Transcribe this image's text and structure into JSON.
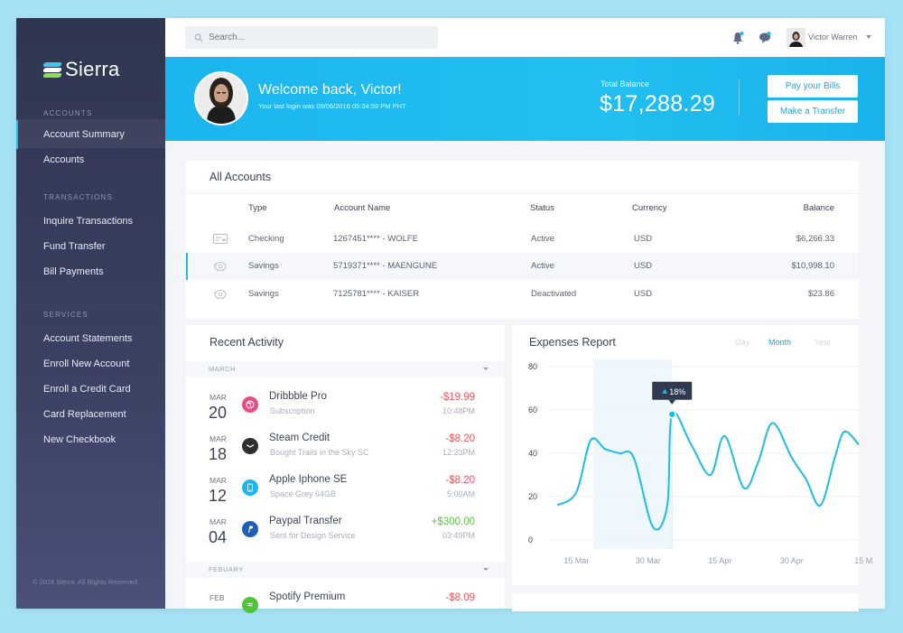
{
  "sidebar": {
    "brand": "Sierra",
    "sections": [
      {
        "title": "ACCOUNTS",
        "items": [
          "Account Summary",
          "Accounts"
        ]
      },
      {
        "title": "TRANSACTIONS",
        "items": [
          "Inquire Transactions",
          "Fund Transfer",
          "Bill Payments"
        ]
      },
      {
        "title": "SERVICES",
        "items": [
          "Account Statements",
          "Enroll New Account",
          "Enroll a Credit Card",
          "Card Replacement",
          "New Checkbook"
        ]
      }
    ],
    "active_item": "Account Summary",
    "copyright": "© 2016 Sierra. All Rights Reserved."
  },
  "topbar": {
    "search_placeholder": "Search...",
    "user_name": "Victor Warren"
  },
  "banner": {
    "welcome": "Welcome back, Victor!",
    "last_login": "Your last login was 09/06/2016 05:34:59 PM PHT",
    "balance_label": "Total Balance",
    "balance_value": "$17,288.29",
    "pay_bills": "Pay your Bills",
    "transfer": "Make a Transfer"
  },
  "accounts": {
    "title": "All Accounts",
    "headers": {
      "type": "Type",
      "name": "Account Name",
      "status": "Status",
      "currency": "Currency",
      "balance": "Balance"
    },
    "rows": [
      {
        "icon": "check-icon",
        "type": "Checking",
        "name": "1267451**** - WOLFE",
        "status": "Active",
        "currency": "USD",
        "balance": "$6,266.33"
      },
      {
        "icon": "piggy-bank-icon",
        "type": "Savings",
        "name": "5719371**** - MAENGUNE",
        "status": "Active",
        "currency": "USD",
        "balance": "$10,998.10"
      },
      {
        "icon": "piggy-bank-icon",
        "type": "Savings",
        "name": "7125781**** - KAISER",
        "status": "Deactivated",
        "currency": "USD",
        "balance": "$23.86"
      }
    ]
  },
  "recent": {
    "title": "Recent Activity",
    "groups": [
      {
        "month": "MARCH",
        "items": [
          {
            "mon": "MAR",
            "day": "20",
            "title": "Dribbble Pro",
            "sub": "Subscription",
            "amount": "-$19.99",
            "time": "10:48PM",
            "icon": "dribbble-icon",
            "color": "#ea4c89"
          },
          {
            "mon": "MAR",
            "day": "18",
            "title": "Steam Credit",
            "sub": "Bought Trails in the Sky SC",
            "amount": "-$8.20",
            "time": "12:23PM",
            "icon": "steam-icon",
            "color": "#2f2f2f"
          },
          {
            "mon": "MAR",
            "day": "12",
            "title": "Apple Iphone SE",
            "sub": "Space Grey 64GB",
            "amount": "-$8.20",
            "time": "5:00AM",
            "icon": "phone-icon",
            "color": "#1bb5ef"
          },
          {
            "mon": "MAR",
            "day": "04",
            "title": "Paypal Transfer",
            "sub": "Sent for Design Service",
            "amount": "+$300.00",
            "time": "03:49PM",
            "icon": "paypal-icon",
            "color": "#1e5fb4"
          }
        ]
      },
      {
        "month": "FEBUARY",
        "items": [
          {
            "mon": "FEB",
            "day": "",
            "title": "Spotify Premium",
            "sub": "",
            "amount": "-$8.09",
            "time": "",
            "icon": "spotify-icon",
            "color": "#4fc33b"
          }
        ]
      }
    ]
  },
  "expenses": {
    "title": "Expenses Report",
    "ranges": [
      "Day",
      "Month",
      "Year"
    ],
    "selected_range": "Month",
    "tooltip": "18%",
    "accent": "#1fbde3"
  },
  "chart_data": {
    "type": "line",
    "x_ticks": [
      "15 Mar",
      "30 Mar",
      "15 Apr",
      "30 Apr",
      "15 M"
    ],
    "y_ticks": [
      80,
      60,
      40,
      20,
      0
    ],
    "ylim": [
      0,
      80
    ],
    "series": [
      {
        "values": [
          [
            0,
            16
          ],
          [
            4,
            22
          ],
          [
            7,
            46
          ],
          [
            10,
            42
          ],
          [
            13,
            40
          ],
          [
            16,
            38
          ],
          [
            20,
            6
          ],
          [
            23,
            16
          ],
          [
            24,
            58
          ],
          [
            28,
            44
          ],
          [
            32,
            30
          ],
          [
            35,
            48
          ],
          [
            39,
            24
          ],
          [
            42,
            36
          ],
          [
            45,
            54
          ],
          [
            49,
            38
          ],
          [
            52,
            28
          ],
          [
            55,
            16
          ],
          [
            58,
            38
          ],
          [
            60,
            50
          ],
          [
            63,
            44
          ]
        ]
      }
    ],
    "x_tick_positions": [
      4,
      19,
      34,
      49,
      64
    ],
    "highlight_x": 24,
    "grid": true
  }
}
